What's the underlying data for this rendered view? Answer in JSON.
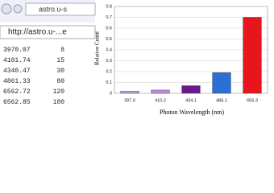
{
  "browser": {
    "tab_text": "astro.u-s",
    "address": "http://astro.u-...e"
  },
  "table": {
    "rows": [
      [
        3970.07,
        8
      ],
      [
        4101.74,
        15
      ],
      [
        4340.47,
        30
      ],
      [
        4861.33,
        80
      ],
      [
        6562.72,
        120
      ],
      [
        6562.85,
        180
      ]
    ]
  },
  "chart_data": {
    "type": "bar",
    "xlabel": "Photon Wavelength (nm)",
    "ylabel": "Relative Count",
    "categories": [
      "397.0",
      "410.2",
      "434.1",
      "486.1",
      "656.3"
    ],
    "values": [
      0.02,
      0.03,
      0.07,
      0.19,
      0.7
    ],
    "colors": [
      "#b9a6dc",
      "#c48ae0",
      "#6b1a8c",
      "#2a6fd2",
      "#e8161c"
    ],
    "ylim": [
      0,
      0.8
    ],
    "yticks": [
      0,
      0.1,
      0.2,
      0.3,
      0.4,
      0.5,
      0.6,
      0.7,
      0.8
    ],
    "grid": true
  }
}
